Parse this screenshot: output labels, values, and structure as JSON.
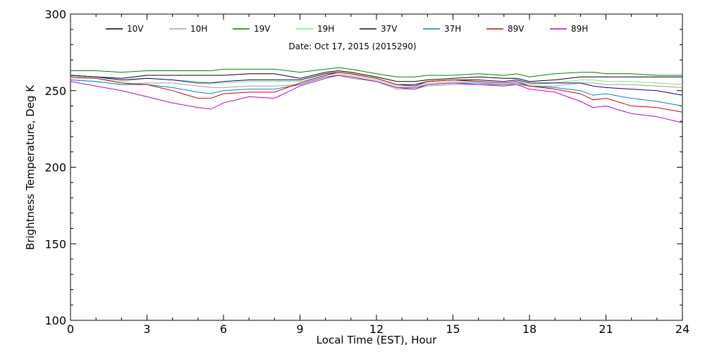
{
  "chart_data": {
    "type": "line",
    "title": "",
    "subtitle": "Date: Oct 17, 2015 (2015290)",
    "xlabel": "Local Time (EST), Hour",
    "ylabel": "Brightness Temperature, Deg K",
    "xlim": [
      0,
      24
    ],
    "ylim": [
      100,
      300
    ],
    "xticks": [
      0,
      3,
      6,
      9,
      12,
      15,
      18,
      21,
      24
    ],
    "yticks": [
      100,
      150,
      200,
      250,
      300
    ],
    "grid": false,
    "legend_position": "top",
    "x": [
      0,
      1,
      2,
      3,
      4,
      5,
      5.5,
      6,
      7,
      8,
      9,
      10,
      10.5,
      11,
      12,
      12.8,
      13.5,
      14,
      15,
      16,
      17,
      17.5,
      18,
      19,
      20,
      20.5,
      21,
      22,
      23,
      24
    ],
    "series": [
      {
        "name": "10V",
        "color": "#000000",
        "values": [
          260,
          259,
          258,
          260,
          260,
          260,
          260,
          260,
          261,
          261,
          258,
          262,
          263,
          262,
          259,
          256,
          256,
          257,
          258,
          259,
          258,
          258,
          256,
          257,
          259,
          259,
          259,
          259,
          259,
          259
        ]
      },
      {
        "name": "10H",
        "color": "#a0a0a0",
        "values": [
          257,
          256,
          254,
          255,
          255,
          253,
          252,
          252,
          253,
          253,
          254,
          259,
          260,
          258,
          256,
          251,
          251,
          253,
          254,
          254,
          254,
          254,
          253,
          253,
          255,
          255,
          254,
          254,
          253,
          252
        ]
      },
      {
        "name": "19V",
        "color": "#008000",
        "values": [
          263,
          263,
          262,
          263,
          263,
          263,
          263,
          264,
          264,
          264,
          262,
          264,
          265,
          264,
          261,
          259,
          259,
          260,
          260,
          261,
          260,
          261,
          259,
          261,
          262,
          262,
          261,
          261,
          260,
          260
        ]
      },
      {
        "name": "19H",
        "color": "#80e080",
        "values": [
          258,
          258,
          256,
          258,
          257,
          256,
          255,
          255,
          256,
          256,
          256,
          260,
          261,
          260,
          257,
          253,
          253,
          255,
          256,
          256,
          255,
          256,
          254,
          255,
          257,
          257,
          256,
          256,
          255,
          254
        ]
      },
      {
        "name": "37V",
        "color": "#000080",
        "values": [
          260,
          259,
          257,
          258,
          257,
          255,
          255,
          256,
          257,
          257,
          257,
          261,
          262,
          261,
          258,
          254,
          254,
          256,
          257,
          257,
          256,
          257,
          255,
          255,
          255,
          253,
          252,
          251,
          250,
          247
        ]
      },
      {
        "name": "37H",
        "color": "#0080d0",
        "values": [
          257,
          256,
          254,
          254,
          252,
          249,
          248,
          250,
          251,
          251,
          254,
          259,
          260,
          259,
          256,
          252,
          252,
          254,
          255,
          255,
          254,
          255,
          253,
          252,
          250,
          247,
          248,
          245,
          243,
          240
        ]
      },
      {
        "name": "89V",
        "color": "#d00000",
        "values": [
          259,
          258,
          255,
          254,
          250,
          245,
          245,
          248,
          249,
          249,
          255,
          260,
          262,
          261,
          258,
          254,
          253,
          256,
          257,
          256,
          255,
          256,
          253,
          251,
          248,
          244,
          245,
          240,
          239,
          236
        ]
      },
      {
        "name": "89H",
        "color": "#c000c0",
        "values": [
          256,
          253,
          250,
          246,
          242,
          239,
          238,
          242,
          246,
          245,
          253,
          258,
          260,
          259,
          256,
          252,
          251,
          254,
          255,
          254,
          253,
          254,
          251,
          249,
          243,
          239,
          240,
          235,
          233,
          229
        ]
      }
    ]
  }
}
